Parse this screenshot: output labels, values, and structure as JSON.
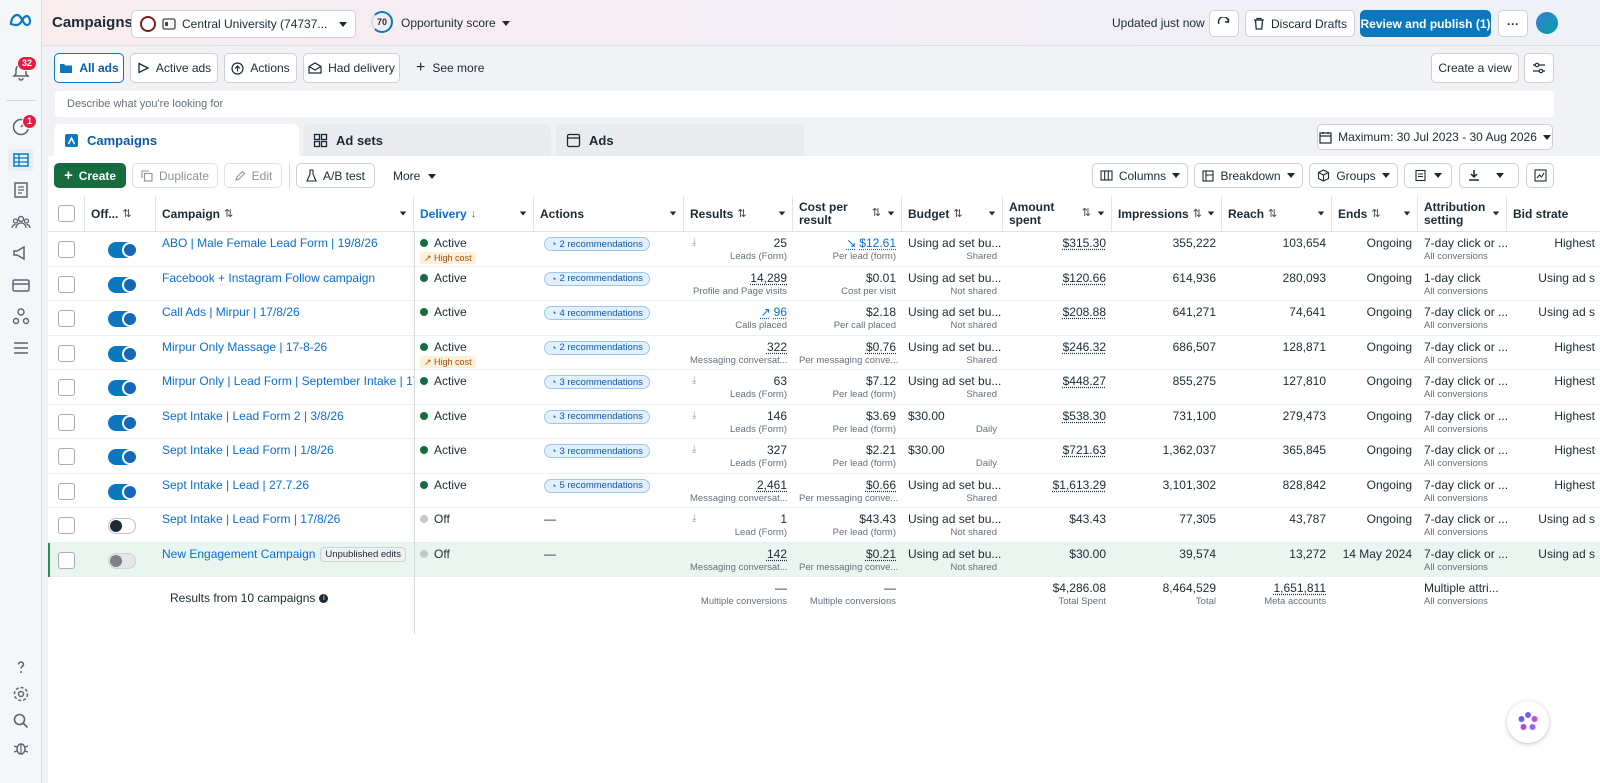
{
  "notifications_count": "32",
  "alerts_count": "1",
  "header": {
    "title": "Campaigns",
    "account": "Central University (74737...",
    "opportunity_score": "70",
    "opportunity_label": "Opportunity score",
    "updated": "Updated just now",
    "discard": "Discard Drafts",
    "review": "Review and publish (1)",
    "more": "···"
  },
  "views": [
    {
      "label": "All ads"
    },
    {
      "label": "Active ads"
    },
    {
      "label": "Actions"
    },
    {
      "label": "Had delivery"
    }
  ],
  "see_more": "See more",
  "create_view": "Create a view",
  "search_placeholder": "Describe what you're looking for",
  "tabs": {
    "campaigns": "Campaigns",
    "adsets": "Ad sets",
    "ads": "Ads"
  },
  "date_range": "Maximum: 30 Jul 2023 - 30 Aug 2026",
  "toolbar": {
    "create": "Create",
    "duplicate": "Duplicate",
    "edit": "Edit",
    "ab_test": "A/B test",
    "more": "More",
    "columns": "Columns",
    "breakdown": "Breakdown",
    "groups": "Groups"
  },
  "columns": {
    "off": "Off...",
    "campaign": "Campaign",
    "delivery": "Delivery",
    "actions": "Actions",
    "results": "Results",
    "cost": "Cost per result",
    "budget": "Budget",
    "amount": "Amount spent",
    "impressions": "Impressions",
    "reach": "Reach",
    "ends": "Ends",
    "attribution": "Attribution setting",
    "bid": "Bid strate"
  },
  "rows": [
    {
      "name": "ABO | Male Female Lead Form | 19/8/26",
      "toggle": "on",
      "delivery": "Active",
      "high_cost": "High cost",
      "recs": "2 recommendations",
      "results": "25",
      "results_sub": "Leads (Form)",
      "cost": "$12.61",
      "cost_sub": "Per lead (form)",
      "budget": "Using ad set bu...",
      "budget_sub": "Shared",
      "amount": "$315.30",
      "impressions": "355,222",
      "reach": "103,654",
      "ends": "Ongoing",
      "attr": "7-day click or ...",
      "attr_sub": "All conversions",
      "bid": "Highest"
    },
    {
      "name": "Facebook + Instagram Follow campaign",
      "toggle": "on",
      "delivery": "Active",
      "high_cost": "",
      "recs": "2 recommendations",
      "results": "14,289",
      "results_sub": "Profile and Page visits",
      "cost": "$0.01",
      "cost_sub": "Cost per visit",
      "budget": "Using ad set bu...",
      "budget_sub": "Not shared",
      "amount": "$120.66",
      "impressions": "614,936",
      "reach": "280,093",
      "ends": "Ongoing",
      "attr": "1-day click",
      "attr_sub": "All conversions",
      "bid": "Using ad s"
    },
    {
      "name": "Call Ads | Mirpur | 17/8/26",
      "toggle": "on",
      "delivery": "Active",
      "high_cost": "",
      "recs": "4 recommendations",
      "results": "96",
      "results_sub": "Calls placed",
      "cost": "$2.18",
      "cost_sub": "Per call placed",
      "budget": "Using ad set bu...",
      "budget_sub": "Not shared",
      "amount": "$208.88",
      "impressions": "641,271",
      "reach": "74,641",
      "ends": "Ongoing",
      "attr": "7-day click or ...",
      "attr_sub": "All conversions",
      "bid": "Using ad s"
    },
    {
      "name": "Mirpur Only Massage | 17-8-26",
      "toggle": "on",
      "delivery": "Active",
      "high_cost": "High cost",
      "recs": "2 recommendations",
      "results": "322",
      "results_sub": "Messaging conversat...",
      "cost": "$0.76",
      "cost_sub": "Per messaging conve...",
      "budget": "Using ad set bu...",
      "budget_sub": "Shared",
      "amount": "$246.32",
      "impressions": "686,507",
      "reach": "128,871",
      "ends": "Ongoing",
      "attr": "7-day click or ...",
      "attr_sub": "All conversions",
      "bid": "Highest"
    },
    {
      "name": "Mirpur Only | Lead Form | September Intake | 17/...",
      "toggle": "on",
      "delivery": "Active",
      "high_cost": "",
      "recs": "3 recommendations",
      "results": "63",
      "results_sub": "Leads (Form)",
      "cost": "$7.12",
      "cost_sub": "Per lead (form)",
      "budget": "Using ad set bu...",
      "budget_sub": "Shared",
      "amount": "$448.27",
      "impressions": "855,275",
      "reach": "127,810",
      "ends": "Ongoing",
      "attr": "7-day click or ...",
      "attr_sub": "All conversions",
      "bid": "Highest"
    },
    {
      "name": "Sept Intake | Lead Form 2 | 3/8/26",
      "toggle": "on",
      "delivery": "Active",
      "high_cost": "",
      "recs": "3 recommendations",
      "results": "146",
      "results_sub": "Leads (Form)",
      "cost": "$3.69",
      "cost_sub": "Per lead (form)",
      "budget": "$30.00",
      "budget_sub": "Daily",
      "amount": "$538.30",
      "impressions": "731,100",
      "reach": "279,473",
      "ends": "Ongoing",
      "attr": "7-day click or ...",
      "attr_sub": "All conversions",
      "bid": "Highest"
    },
    {
      "name": "Sept Intake | Lead Form | 1/8/26",
      "toggle": "on",
      "delivery": "Active",
      "high_cost": "",
      "recs": "3 recommendations",
      "results": "327",
      "results_sub": "Leads (Form)",
      "cost": "$2.21",
      "cost_sub": "Per lead (form)",
      "budget": "$30.00",
      "budget_sub": "Daily",
      "amount": "$721.63",
      "impressions": "1,362,037",
      "reach": "365,845",
      "ends": "Ongoing",
      "attr": "7-day click or ...",
      "attr_sub": "All conversions",
      "bid": "Highest"
    },
    {
      "name": "Sept Intake | Lead | 27.7.26",
      "toggle": "on",
      "delivery": "Active",
      "high_cost": "",
      "recs": "5 recommendations",
      "results": "2,461",
      "results_sub": "Messaging conversat...",
      "cost": "$0.66",
      "cost_sub": "Per messaging conve...",
      "budget": "Using ad set bu...",
      "budget_sub": "Shared",
      "amount": "$1,613.29",
      "impressions": "3,101,302",
      "reach": "828,842",
      "ends": "Ongoing",
      "attr": "7-day click or ...",
      "attr_sub": "All conversions",
      "bid": "Highest"
    },
    {
      "name": "Sept Intake | Lead Form | 17/8/26",
      "toggle": "off",
      "delivery": "Off",
      "high_cost": "",
      "recs": "—",
      "results": "1",
      "results_sub": "Lead (Form)",
      "cost": "$43.43",
      "cost_sub": "Per lead (form)",
      "budget": "Using ad set bu...",
      "budget_sub": "Not shared",
      "amount": "$43.43",
      "impressions": "77,305",
      "reach": "43,787",
      "ends": "Ongoing",
      "attr": "7-day click or ...",
      "attr_sub": "All conversions",
      "bid": "Using ad s"
    },
    {
      "name": "New Engagement Campaign",
      "tag": "Unpublished edits",
      "toggle": "disabled",
      "delivery": "Off",
      "high_cost": "",
      "recs": "—",
      "results": "142",
      "results_sub": "Messaging conversat...",
      "cost": "$0.21",
      "cost_sub": "Per messaging conve...",
      "budget": "Using ad set bu...",
      "budget_sub": "Not shared",
      "amount": "$30.00",
      "impressions": "39,574",
      "reach": "13,272",
      "ends": "14 May 2024",
      "attr": "7-day click or ...",
      "attr_sub": "All conversions",
      "bid": "Using ad s"
    }
  ],
  "summary": {
    "label": "Results from 10 campaigns",
    "results": "—",
    "results_sub": "Multiple conversions",
    "cost": "—",
    "cost_sub": "Multiple conversions",
    "amount": "$4,286.08",
    "amount_sub": "Total Spent",
    "impressions": "8,464,529",
    "impressions_sub": "Total",
    "reach": "1,651,811",
    "reach_sub": "Meta accounts",
    "attr": "Multiple attri...",
    "attr_sub": "All conversions"
  }
}
